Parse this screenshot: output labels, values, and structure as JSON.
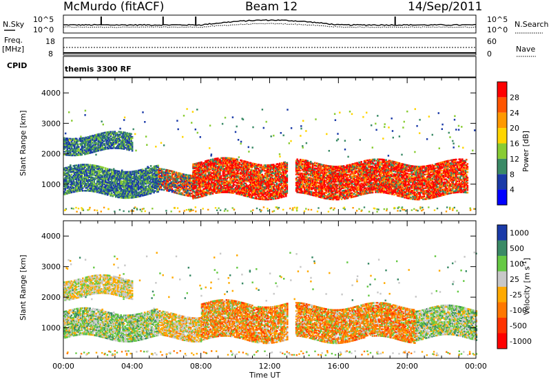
{
  "header": {
    "station": "McMurdo (fitACF)",
    "beam": "Beam 12",
    "date": "14/Sep/2011"
  },
  "noise_panel": {
    "left_label": "N.Sky",
    "right_label": "N.Search",
    "left_ticks": [
      "10^5",
      "10^0"
    ],
    "right_ticks": [
      "10^5",
      "10^0"
    ]
  },
  "freq_panel": {
    "left_label_top": "Freq.",
    "left_label_unit": "[MHz]",
    "left_ticks": [
      "18",
      "8"
    ],
    "right_label": "Nave",
    "right_ticks": [
      "60",
      "0"
    ]
  },
  "cpid": {
    "label": "CPID",
    "value": "themis 3300 RF"
  },
  "colors": {
    "power_scale": [
      "#0000ff",
      "#1a3aa8",
      "#3a8a66",
      "#88cc33",
      "#ffd500",
      "#ff9900",
      "#ff5500",
      "#ff0000"
    ],
    "velocity_scale": [
      "#1a3aa8",
      "#3a8a66",
      "#66c944",
      "#c8c8c8",
      "#ffaa00",
      "#ff7700",
      "#ff3300",
      "#ff0000"
    ]
  },
  "chart_data": [
    {
      "type": "heatmap",
      "panel": "power",
      "title": "",
      "ylabel": "Slant Range [km]",
      "ylim": [
        0,
        4500
      ],
      "y_ticks": [
        "1000",
        "2000",
        "3000",
        "4000"
      ],
      "xlim_hours": [
        0,
        24
      ],
      "colorbar_label": "Power [dB]",
      "colorbar_ticks": [
        "28",
        "24",
        "20",
        "16",
        "12",
        "8",
        "4"
      ],
      "colorbar_range": [
        0,
        32
      ],
      "bands": [
        {
          "t0": 0.0,
          "t1": 5.5,
          "r0": 650,
          "r1": 1550,
          "level": "low"
        },
        {
          "t0": 5.5,
          "t1": 7.5,
          "r0": 700,
          "r1": 1400,
          "level": "mid"
        },
        {
          "t0": 7.5,
          "t1": 13.0,
          "r0": 600,
          "r1": 1750,
          "level": "high"
        },
        {
          "t0": 13.5,
          "t1": 23.5,
          "r0": 600,
          "r1": 1700,
          "level": "high"
        },
        {
          "t0": 0.0,
          "t1": 4.0,
          "r0": 2050,
          "r1": 2600,
          "level": "low"
        }
      ]
    },
    {
      "type": "heatmap",
      "panel": "velocity",
      "title": "",
      "ylabel": "Slant Range [km]",
      "xlabel": "Time UT",
      "ylim": [
        0,
        4500
      ],
      "y_ticks": [
        "1000",
        "2000",
        "3000",
        "4000"
      ],
      "x_ticks": [
        "00:00",
        "04:00",
        "08:00",
        "12:00",
        "16:00",
        "20:00",
        "00:00"
      ],
      "xlim_hours": [
        0,
        24
      ],
      "colorbar_label": "Velocity [m s-1]",
      "colorbar_label_main": "Velocity",
      "colorbar_label_unit": "[m s",
      "colorbar_label_exp": "-1",
      "colorbar_label_end": "]",
      "colorbar_ticks": [
        "1000",
        "500",
        "100",
        "25",
        "-25",
        "-100",
        "-500",
        "-1000"
      ],
      "bands": [
        {
          "t0": 0.0,
          "t1": 5.5,
          "r0": 650,
          "r1": 1550,
          "level": "green"
        },
        {
          "t0": 5.5,
          "t1": 8.0,
          "r0": 650,
          "r1": 1450,
          "level": "mixed"
        },
        {
          "t0": 8.0,
          "t1": 13.0,
          "r0": 600,
          "r1": 1800,
          "level": "orange"
        },
        {
          "t0": 13.5,
          "t1": 20.5,
          "r0": 600,
          "r1": 1700,
          "level": "orange"
        },
        {
          "t0": 20.5,
          "t1": 24.0,
          "r0": 650,
          "r1": 1600,
          "level": "green"
        },
        {
          "t0": 0.0,
          "t1": 4.0,
          "r0": 2000,
          "r1": 2600,
          "level": "grey"
        }
      ]
    }
  ]
}
